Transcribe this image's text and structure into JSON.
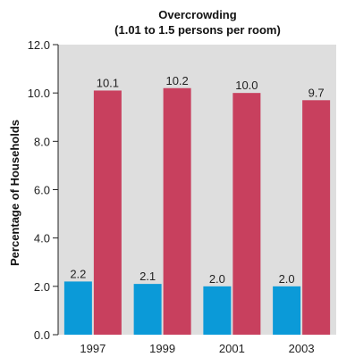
{
  "chart_data": {
    "type": "bar",
    "title": "Overcrowding",
    "subtitle": "(1.01 to 1.5 persons per room)",
    "xlabel": "",
    "ylabel": "Percentage of Households",
    "categories": [
      "1997",
      "1999",
      "2001",
      "2003"
    ],
    "series": [
      {
        "values": [
          2.2,
          2.1,
          2.0,
          2.0
        ],
        "color": "#0b9ad8"
      },
      {
        "values": [
          10.1,
          10.2,
          10.0,
          9.7
        ],
        "color": "#c8405e"
      }
    ],
    "data_labels": [
      [
        "2.2",
        "2.1",
        "2.0",
        "2.0"
      ],
      [
        "10.1",
        "10.2",
        "10.0",
        "9.7"
      ]
    ],
    "y_ticks": [
      "0.0",
      "2.0",
      "4.0",
      "6.0",
      "8.0",
      "10.0",
      "12.0"
    ],
    "ylim": [
      0,
      12
    ],
    "grid": false,
    "legend": "none",
    "plot_background": "#dedede"
  }
}
